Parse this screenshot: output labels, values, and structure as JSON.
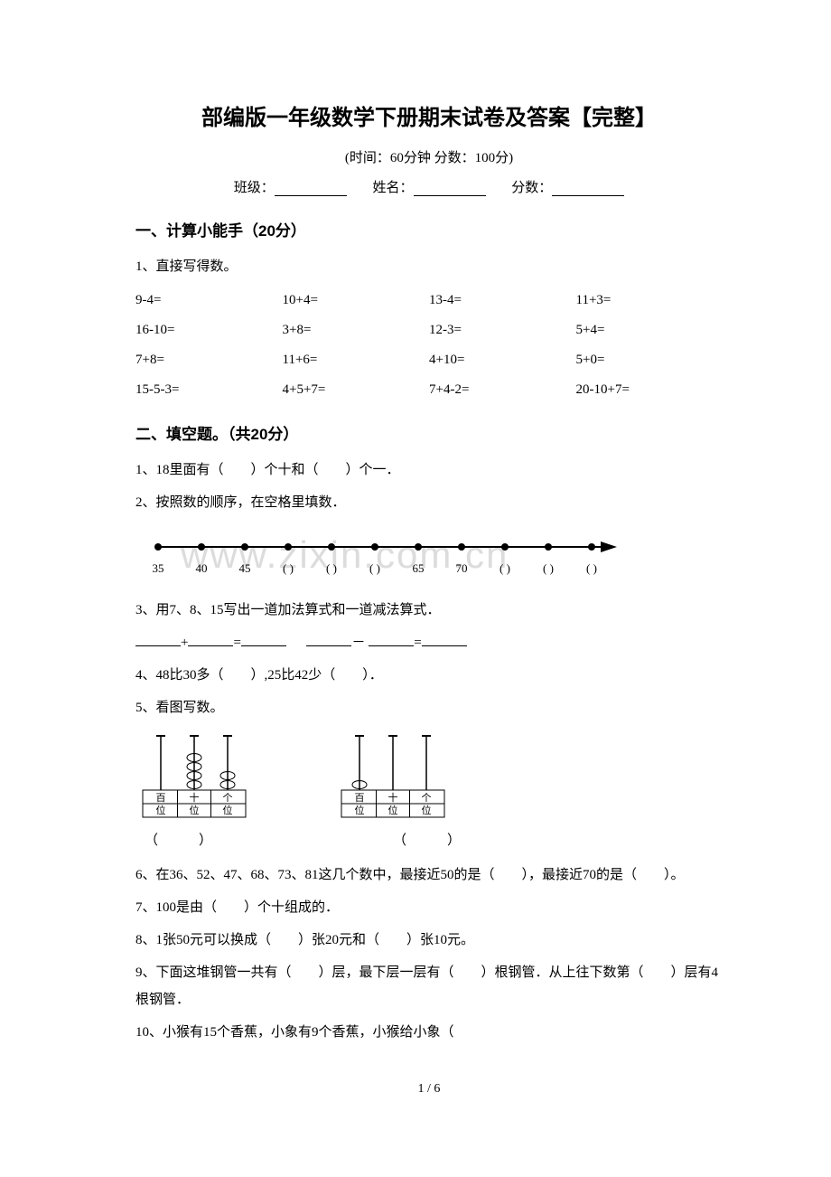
{
  "title": "部编版一年级数学下册期末试卷及答案【完整】",
  "subtitle": "(时间：60分钟   分数：100分)",
  "info": {
    "class_label": "班级：",
    "name_label": "姓名：",
    "score_label": "分数："
  },
  "section1": {
    "header": "一、计算小能手（20分）",
    "q1_label": "1、直接写得数。",
    "rows": [
      [
        "9-4=",
        "10+4=",
        "13-4=",
        "11+3="
      ],
      [
        "16-10=",
        "3+8=",
        "12-3=",
        "5+4="
      ],
      [
        "7+8=",
        "11+6=",
        "4+10=",
        "5+0="
      ],
      [
        "15-5-3=",
        "4+5+7=",
        "7+4-2=",
        "20-10+7="
      ]
    ]
  },
  "section2": {
    "header": "二、填空题。（共20分）",
    "q1": "1、18里面有（　　）个十和（　　）个一．",
    "q2": "2、按照数的顺序，在空格里填数．",
    "number_line": {
      "ticks": 11,
      "labels": [
        "35",
        "40",
        "45",
        "(  )",
        "(  )",
        "(  )",
        "65",
        "70",
        "(  )",
        "(  )",
        "(  )"
      ],
      "line_color": "#000000",
      "dot_radius": 4,
      "fontsize": 13
    },
    "q3": "3、用7、8、15写出一道加法算式和一道减法算式．",
    "q4": "4、48比30多（　　）,25比42少（　　）．",
    "q5": "5、看图写数。",
    "abacus": {
      "left": {
        "cols": [
          "百",
          "十",
          "个"
        ],
        "sublabel": [
          "位",
          "位",
          "位"
        ],
        "beads": [
          0,
          4,
          2
        ]
      },
      "right": {
        "cols": [
          "百",
          "十",
          "个"
        ],
        "sublabel": [
          "位",
          "位",
          "位"
        ],
        "beads": [
          1,
          0,
          0
        ]
      },
      "left_paren": "（　　　）",
      "right_paren": "（　　　）"
    },
    "q6": "6、在36、52、47、68、73、81这几个数中，最接近50的是（　　），最接近70的是（　　）。",
    "q7": "7、100是由（　　）个十组成的．",
    "q8": "8、1张50元可以换成（　　）张20元和（　　）张10元。",
    "q9": "9、下面这堆钢管一共有（　　）层，最下层一层有（　　）根钢管．从上往下数第（　　）层有4根钢管．",
    "q10": "10、小猴有15个香蕉，小象有9个香蕉，小猴给小象（"
  },
  "watermark": "www.zixin.com.cn",
  "pager": "1 / 6"
}
